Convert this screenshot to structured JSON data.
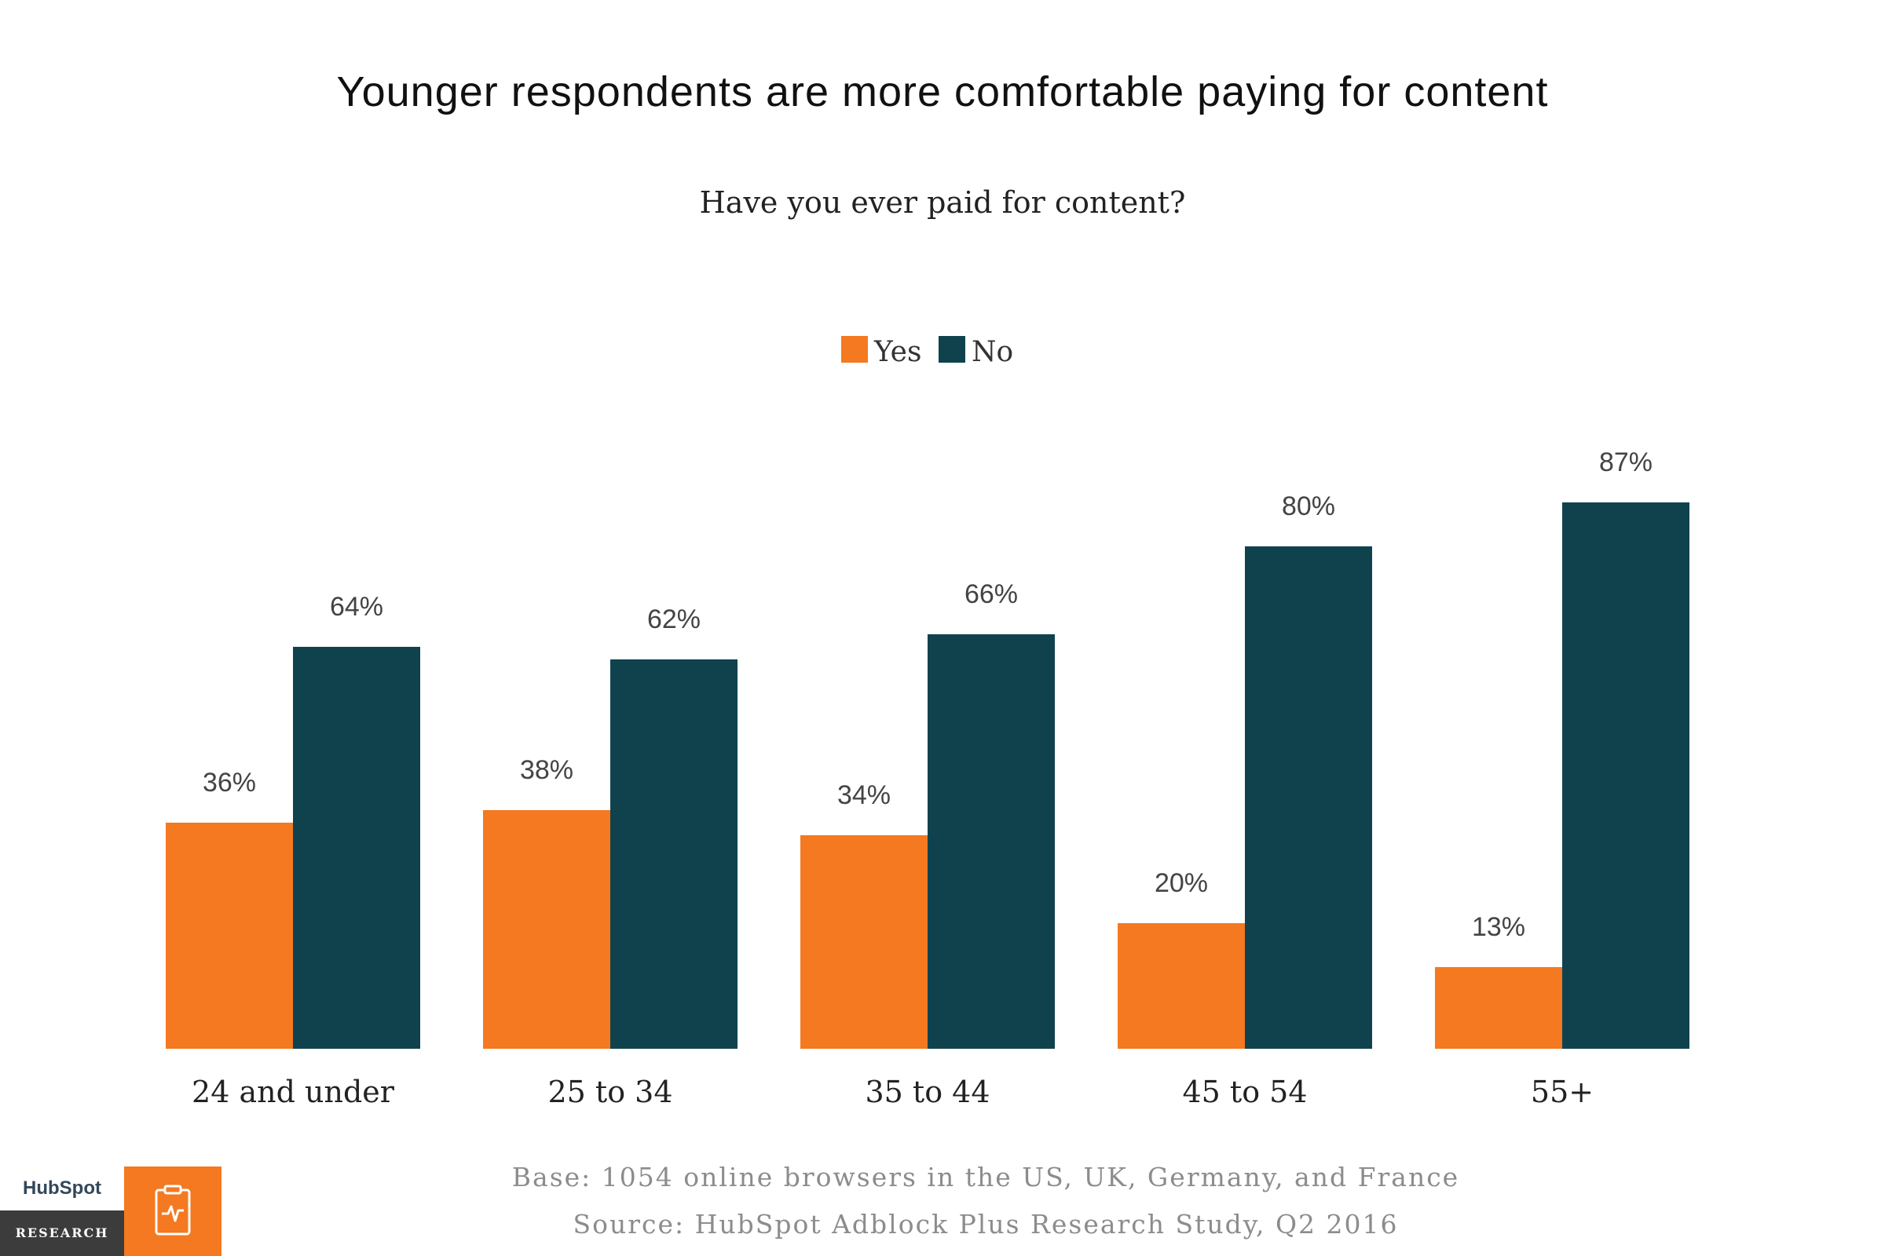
{
  "chart_data": {
    "type": "bar",
    "title": "Younger respondents are more comfortable paying for content",
    "subtitle": "Have you ever paid for content?",
    "categories": [
      "24 and under",
      "25 to 34",
      "35 to 44",
      "45 to 54",
      "55+"
    ],
    "series": [
      {
        "name": "Yes",
        "color": "#f47920",
        "values": [
          36,
          38,
          34,
          20,
          13
        ],
        "labels": [
          "36%",
          "38%",
          "34%",
          "20%",
          "13%"
        ]
      },
      {
        "name": "No",
        "color": "#10424e",
        "values": [
          64,
          62,
          66,
          80,
          87
        ],
        "labels": [
          "64%",
          "62%",
          "66%",
          "80%",
          "87%"
        ]
      }
    ],
    "ylim": [
      0,
      100
    ],
    "grid": false,
    "legend": "top-center"
  },
  "footer": {
    "base": "Base: 1054 online browsers in the US, UK, Germany, and France",
    "source": "Source: HubSpot Adblock Plus Research Study, Q2 2016"
  },
  "logo": {
    "brand": "HubSpot",
    "section": "RESEARCH",
    "tile_icon": "clipboard-pulse-icon"
  }
}
